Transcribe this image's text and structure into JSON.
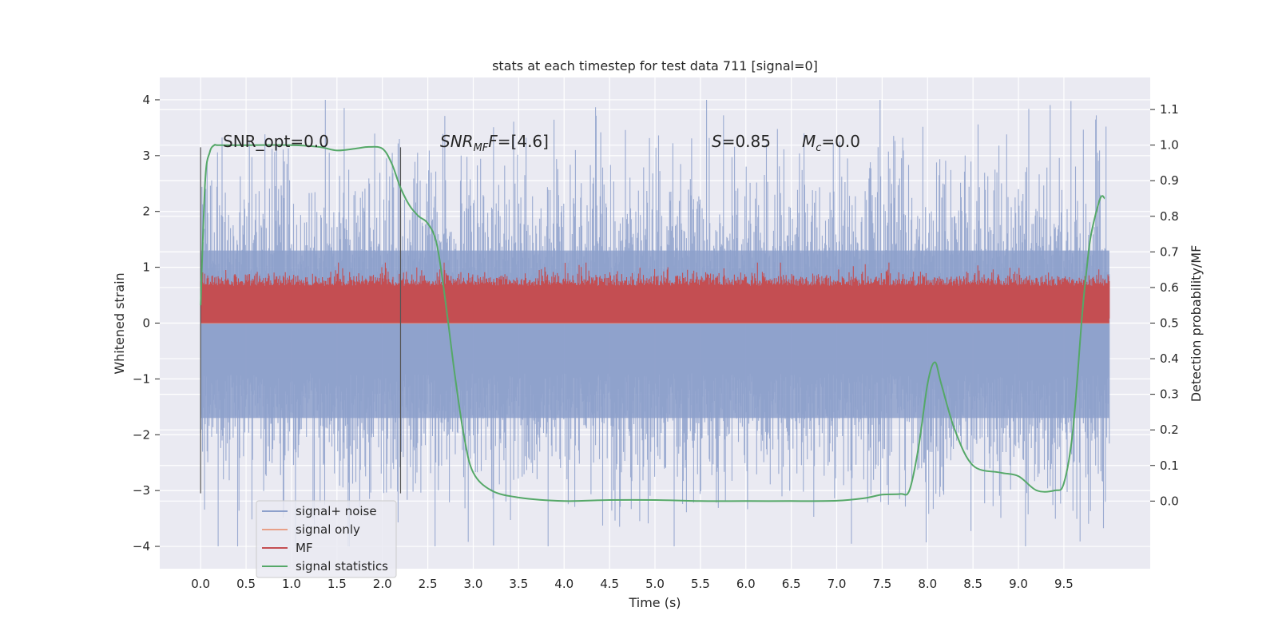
{
  "chart_data": {
    "type": "line",
    "title": "stats at each timestep for test data 711 [signal=0]",
    "xlabel": "Time (s)",
    "ylabel": "Whitened strain",
    "y2label": "Detection probability/MF",
    "xlim": [
      -0.45,
      10.45
    ],
    "ylim": [
      -4.4,
      4.4
    ],
    "y2lim": [
      -0.19,
      1.19
    ],
    "x_ticks": [
      "0.0",
      "0.5",
      "1.0",
      "1.5",
      "2.0",
      "2.5",
      "3.0",
      "3.5",
      "4.0",
      "4.5",
      "5.0",
      "5.5",
      "6.0",
      "6.5",
      "7.0",
      "7.5",
      "8.0",
      "8.5",
      "9.0",
      "9.5"
    ],
    "y_ticks": [
      "4",
      "3",
      "2",
      "1",
      "0",
      "−1",
      "−2",
      "−3",
      "−4"
    ],
    "y2_ticks": [
      "1.1",
      "1.0",
      "0.9",
      "0.8",
      "0.7",
      "0.6",
      "0.5",
      "0.4",
      "0.3",
      "0.2",
      "0.1",
      "0.0"
    ],
    "grid": true,
    "legend_position": "lower-left",
    "annotations": {
      "snr_opt": "SNR_opt=0.0",
      "snr_mf_main": "SNR",
      "snr_mf_sub": "MF",
      "snr_mf_rest": "=[4.6]",
      "s_main": "S",
      "s_rest": "=0.85",
      "mc_main": "M",
      "mc_sub": "c",
      "mc_rest": "=0.0"
    },
    "vlines": [
      0.0,
      2.2
    ],
    "series": [
      {
        "name": "signal+ noise",
        "color": "#8da0cb",
        "style": "dense-noise",
        "x_range": [
          0.0,
          10.0
        ],
        "y_envelope": [
          -4.0,
          4.0
        ]
      },
      {
        "name": "signal only",
        "color": "#e8a088",
        "x": [
          0.0,
          10.0
        ],
        "y": [
          0.0,
          0.0
        ]
      },
      {
        "name": "MF",
        "color": "#c44e52",
        "axis": "right",
        "style": "dense-noise",
        "x_range": [
          0.0,
          10.0
        ],
        "y_envelope": [
          0.5,
          0.62
        ]
      },
      {
        "name": "signal statistics",
        "color": "#55a868",
        "axis": "right",
        "x": [
          0.0,
          0.05,
          0.1,
          0.15,
          0.2,
          0.5,
          1.0,
          1.3,
          1.5,
          1.7,
          1.85,
          2.0,
          2.1,
          2.2,
          2.3,
          2.4,
          2.5,
          2.6,
          2.7,
          2.8,
          2.9,
          3.0,
          3.2,
          3.5,
          4.0,
          4.5,
          5.0,
          5.5,
          6.0,
          6.5,
          7.0,
          7.3,
          7.5,
          7.7,
          7.8,
          7.9,
          8.0,
          8.08,
          8.15,
          8.3,
          8.5,
          8.8,
          9.0,
          9.2,
          9.4,
          9.5,
          9.6,
          9.7,
          9.75,
          9.8,
          9.9,
          9.95
        ],
        "y": [
          0.55,
          0.9,
          0.98,
          1.0,
          1.0,
          1.0,
          1.0,
          0.995,
          0.985,
          0.99,
          0.995,
          0.99,
          0.95,
          0.88,
          0.83,
          0.8,
          0.78,
          0.72,
          0.55,
          0.35,
          0.18,
          0.08,
          0.03,
          0.01,
          0.0,
          0.003,
          0.003,
          0.0,
          0.0,
          0.0,
          0.001,
          0.008,
          0.018,
          0.02,
          0.03,
          0.15,
          0.33,
          0.39,
          0.33,
          0.2,
          0.1,
          0.08,
          0.07,
          0.03,
          0.03,
          0.05,
          0.2,
          0.52,
          0.65,
          0.75,
          0.85,
          0.85
        ]
      }
    ]
  }
}
